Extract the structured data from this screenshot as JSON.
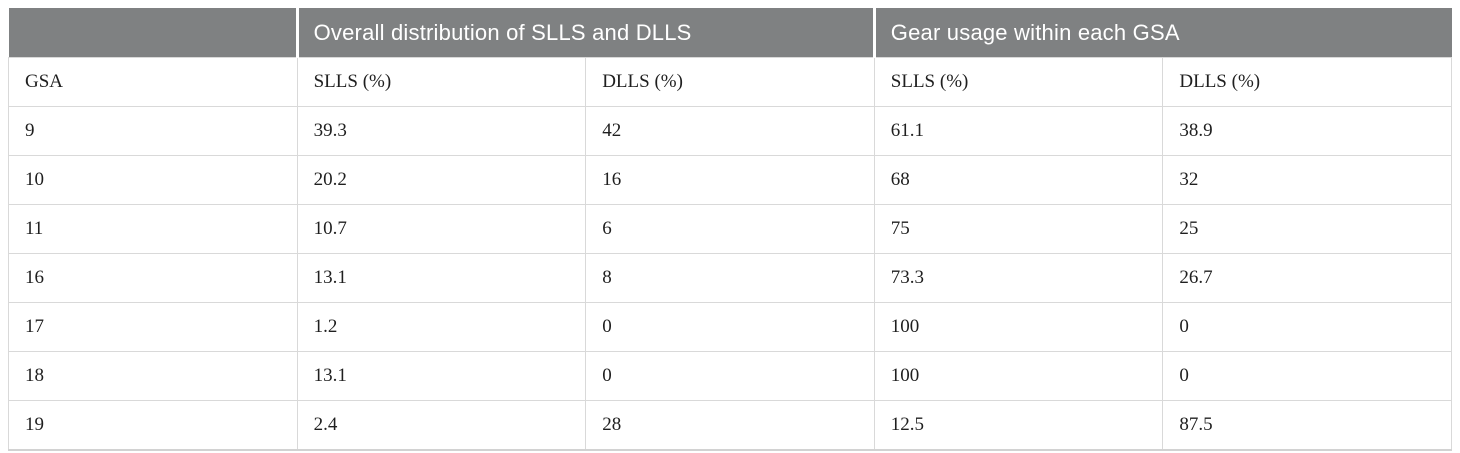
{
  "table": {
    "group_headers": [
      {
        "label": "",
        "span": 1
      },
      {
        "label": "Overall distribution of SLLS and DLLS",
        "span": 2
      },
      {
        "label": "Gear usage within each GSA",
        "span": 2
      }
    ],
    "columns": [
      "GSA",
      "SLLS (%)",
      "DLLS (%)",
      "SLLS (%)",
      "DLLS (%)"
    ],
    "rows": [
      [
        "9",
        "39.3",
        "42",
        "61.1",
        "38.9"
      ],
      [
        "10",
        "20.2",
        "16",
        "68",
        "32"
      ],
      [
        "11",
        "10.7",
        "6",
        "75",
        "25"
      ],
      [
        "16",
        "13.1",
        "8",
        "73.3",
        "26.7"
      ],
      [
        "17",
        "1.2",
        "0",
        "100",
        "0"
      ],
      [
        "18",
        "13.1",
        "0",
        "100",
        "0"
      ],
      [
        "19",
        "2.4",
        "28",
        "12.5",
        "87.5"
      ]
    ]
  },
  "colors": {
    "header_bg": "#7f8182",
    "header_text": "#ffffff",
    "body_text": "#1f1f1f",
    "border": "#d9d9d9",
    "bottom_border": "#d2d2d2"
  }
}
